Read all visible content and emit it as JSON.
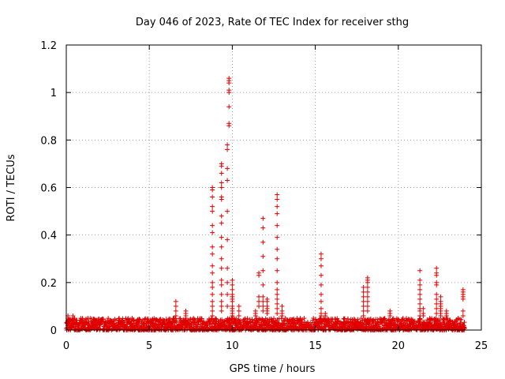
{
  "chart_data": {
    "type": "scatter",
    "title": "Day 046 of 2023, Rate Of TEC Index for receiver sthg",
    "xlabel": "GPS time / hours",
    "ylabel": "ROTI / TECUs",
    "xlim": [
      0,
      25
    ],
    "ylim": [
      0,
      1.2
    ],
    "x_ticks": [
      0,
      5,
      10,
      15,
      20,
      25
    ],
    "x_tick_labels": [
      "0",
      "5",
      "10",
      "15",
      "20",
      "25"
    ],
    "y_ticks": [
      0,
      0.2,
      0.4,
      0.6,
      0.8,
      1.0,
      1.2
    ],
    "y_tick_labels": [
      "0",
      "0.2",
      "0.4",
      "0.6",
      "0.8",
      "1",
      "1.2"
    ],
    "grid": true,
    "marker": "+",
    "marker_color": "#e00000",
    "baseline": {
      "description_free": true,
      "x_range": [
        0,
        24
      ],
      "typical_max": 0.05
    },
    "spikes": [
      {
        "x": 0.1,
        "y_values": [
          0.06,
          0.05,
          0.04,
          0.03,
          0.02
        ]
      },
      {
        "x": 0.4,
        "y_values": [
          0.06,
          0.05,
          0.04
        ]
      },
      {
        "x": 6.6,
        "y_values": [
          0.12,
          0.1,
          0.08,
          0.06
        ]
      },
      {
        "x": 7.2,
        "y_values": [
          0.08,
          0.07,
          0.06,
          0.05,
          0.04
        ]
      },
      {
        "x": 8.8,
        "y_values": [
          0.6,
          0.59,
          0.56,
          0.52,
          0.5,
          0.44,
          0.41,
          0.35,
          0.32,
          0.27,
          0.24,
          0.2,
          0.18,
          0.15,
          0.12,
          0.1,
          0.08,
          0.06
        ]
      },
      {
        "x": 9.35,
        "y_values": [
          0.7,
          0.69,
          0.66,
          0.62,
          0.6,
          0.56,
          0.55,
          0.48,
          0.45,
          0.39,
          0.35,
          0.3,
          0.26,
          0.21,
          0.19,
          0.15,
          0.12,
          0.1,
          0.08
        ]
      },
      {
        "x": 9.7,
        "y_values": [
          0.78,
          0.76,
          0.68,
          0.63,
          0.5,
          0.38,
          0.26,
          0.2,
          0.15,
          0.1
        ]
      },
      {
        "x": 9.8,
        "y_values": [
          1.06,
          1.05,
          1.04,
          1.01,
          1.0,
          0.94,
          0.87,
          0.86
        ]
      },
      {
        "x": 10.0,
        "y_values": [
          0.21,
          0.19,
          0.17,
          0.15,
          0.14,
          0.13,
          0.12,
          0.1,
          0.09,
          0.08,
          0.07,
          0.06
        ]
      },
      {
        "x": 10.4,
        "y_values": [
          0.1,
          0.08,
          0.06
        ]
      },
      {
        "x": 11.4,
        "y_values": [
          0.08,
          0.07,
          0.06
        ]
      },
      {
        "x": 11.6,
        "y_values": [
          0.24,
          0.23,
          0.14,
          0.12,
          0.1
        ]
      },
      {
        "x": 11.85,
        "y_values": [
          0.47,
          0.43,
          0.37,
          0.31,
          0.25,
          0.19,
          0.14,
          0.12,
          0.1,
          0.08
        ]
      },
      {
        "x": 12.1,
        "y_values": [
          0.13,
          0.12,
          0.1,
          0.09,
          0.08,
          0.07
        ]
      },
      {
        "x": 12.7,
        "y_values": [
          0.57,
          0.55,
          0.52,
          0.49,
          0.44,
          0.39,
          0.34,
          0.3,
          0.25,
          0.2,
          0.17,
          0.15,
          0.13,
          0.11,
          0.09,
          0.07
        ]
      },
      {
        "x": 13.0,
        "y_values": [
          0.1,
          0.08,
          0.07,
          0.06
        ]
      },
      {
        "x": 15.35,
        "y_values": [
          0.32,
          0.3,
          0.27,
          0.23,
          0.19,
          0.15,
          0.12,
          0.09,
          0.07,
          0.06
        ]
      },
      {
        "x": 15.6,
        "y_values": [
          0.07,
          0.06
        ]
      },
      {
        "x": 17.9,
        "y_values": [
          0.18,
          0.16,
          0.14,
          0.12,
          0.1,
          0.08,
          0.06
        ]
      },
      {
        "x": 18.15,
        "y_values": [
          0.22,
          0.21,
          0.2,
          0.18,
          0.16,
          0.14,
          0.12,
          0.1,
          0.08
        ]
      },
      {
        "x": 19.5,
        "y_values": [
          0.08,
          0.07,
          0.06
        ]
      },
      {
        "x": 21.3,
        "y_values": [
          0.25,
          0.21,
          0.19,
          0.17,
          0.15,
          0.13,
          0.11,
          0.09,
          0.08,
          0.06
        ]
      },
      {
        "x": 21.5,
        "y_values": [
          0.09,
          0.07,
          0.06
        ]
      },
      {
        "x": 22.3,
        "y_values": [
          0.26,
          0.24,
          0.23,
          0.2,
          0.19,
          0.15,
          0.13,
          0.11,
          0.09,
          0.07
        ]
      },
      {
        "x": 22.55,
        "y_values": [
          0.14,
          0.12,
          0.11,
          0.1,
          0.09,
          0.08,
          0.07,
          0.06
        ]
      },
      {
        "x": 22.9,
        "y_values": [
          0.08,
          0.07,
          0.06
        ]
      },
      {
        "x": 23.9,
        "y_values": [
          0.17,
          0.16,
          0.15,
          0.14,
          0.13,
          0.08,
          0.06
        ]
      }
    ]
  }
}
